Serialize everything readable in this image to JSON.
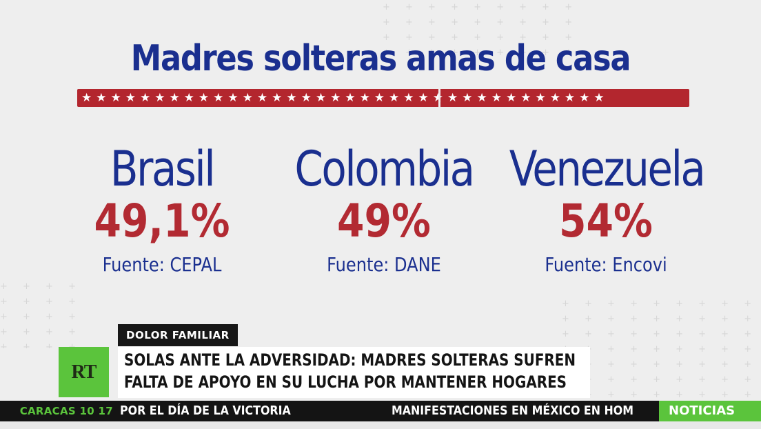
{
  "graphic": {
    "title": "Madres solteras amas de casa",
    "countries": [
      {
        "name": "Brasil",
        "percent": "49,1%",
        "source": "Fuente: CEPAL"
      },
      {
        "name": "Colombia",
        "percent": "49%",
        "source": "Fuente: DANE"
      },
      {
        "name": "Venezuela",
        "percent": "54%",
        "source": "Fuente: Encovi"
      }
    ]
  },
  "lower_third": {
    "category": "DOLOR FAMILIAR",
    "logo": "RT",
    "headline_line1": "SOLAS ANTE LA ADVERSIDAD: MADRES SOLTERAS SUFREN",
    "headline_line2": "FALTA DE APOYO EN SU LUCHA POR MANTENER HOGARES"
  },
  "ticker": {
    "clock": "CARACAS 10 17",
    "item1": "POR EL DÍA DE LA VICTORIA",
    "item2": "MANIFESTACIONES EN MÉXICO EN HOM",
    "badge": "NOTICIAS"
  },
  "colors": {
    "title_blue": "#1a2f8f",
    "percent_red": "#b22a32",
    "rt_green": "#5bc43c",
    "star_bar_red": "#b3262e"
  }
}
